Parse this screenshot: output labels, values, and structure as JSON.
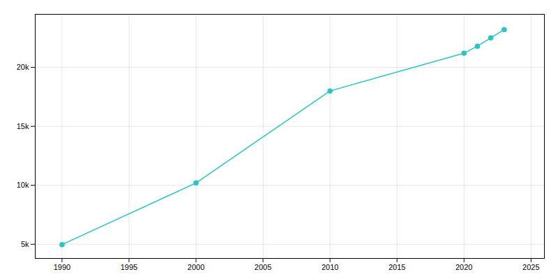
{
  "chart_data": {
    "type": "line",
    "x": [
      1990,
      2000,
      2010,
      2020,
      2021,
      2022,
      2023
    ],
    "values": [
      4972,
      10200,
      18000,
      21200,
      21800,
      22500,
      23200
    ],
    "color": "#26C6C6",
    "marker": "circle",
    "xlim": [
      1988,
      2026
    ],
    "ylim": [
      3800,
      24500
    ],
    "xticks": [
      1990,
      1995,
      2000,
      2005,
      2010,
      2015,
      2020,
      2025
    ],
    "yticks": [
      {
        "value": 5000,
        "label": "5k"
      },
      {
        "value": 10000,
        "label": "10k"
      },
      {
        "value": 15000,
        "label": "15k"
      },
      {
        "value": 20000,
        "label": "20k"
      }
    ],
    "grid": true
  }
}
